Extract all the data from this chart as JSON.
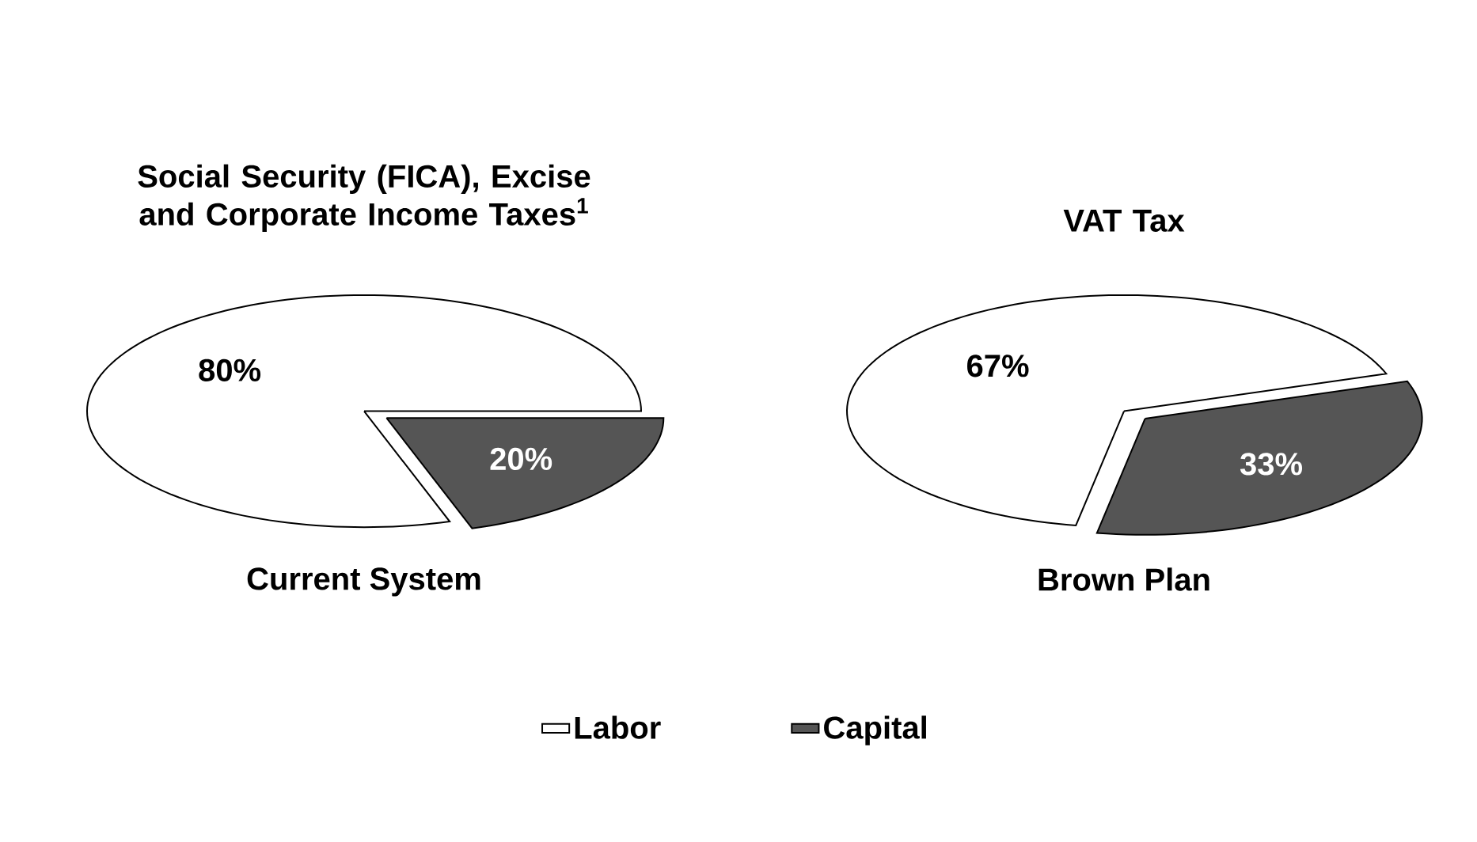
{
  "chart_data": [
    {
      "type": "pie",
      "title": "Social Security (FICA), Excise and Corporate Income Taxes$^{1}$",
      "xlabel": "Current System",
      "categories": [
        "Labor",
        "Capital"
      ],
      "values": [
        80,
        20
      ],
      "colors": [
        "#ffffff",
        "#555555"
      ],
      "value_labels": [
        "80%",
        "20%"
      ],
      "legend": "bottom"
    },
    {
      "type": "pie",
      "title": "VAT Tax",
      "xlabel": "Brown Plan",
      "categories": [
        null,
        null
      ],
      "values": [
        67,
        33
      ],
      "colors": [
        "#ffffff",
        "#555555"
      ],
      "value_labels": [
        "67%",
        "33%"
      ]
    }
  ]
}
